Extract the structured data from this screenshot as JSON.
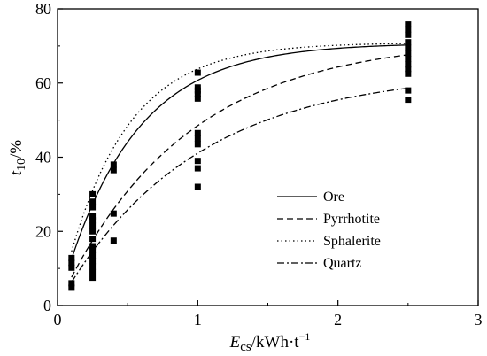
{
  "chart_data": {
    "type": "scatter",
    "title": "",
    "xlabel": {
      "main": "E",
      "sub": "cs",
      "unit": "/kWh·t",
      "sup": "−1"
    },
    "ylabel": {
      "main": "t",
      "sub": "10",
      "unit": "/%"
    },
    "xlim": [
      0,
      3
    ],
    "ylim": [
      0,
      80
    ],
    "xticks": [
      "0",
      "1",
      "2",
      "3"
    ],
    "yticks": [
      "0",
      "20",
      "40",
      "60",
      "80"
    ],
    "grid": false,
    "legend_position": "center-right",
    "points": [
      {
        "x": 0.1,
        "y": 4.8
      },
      {
        "x": 0.1,
        "y": 6.0
      },
      {
        "x": 0.1,
        "y": 10.2
      },
      {
        "x": 0.1,
        "y": 11.5
      },
      {
        "x": 0.1,
        "y": 12.8
      },
      {
        "x": 0.25,
        "y": 7.5
      },
      {
        "x": 0.25,
        "y": 9.0
      },
      {
        "x": 0.25,
        "y": 10.5
      },
      {
        "x": 0.25,
        "y": 12.0
      },
      {
        "x": 0.25,
        "y": 13.5
      },
      {
        "x": 0.25,
        "y": 15.0
      },
      {
        "x": 0.25,
        "y": 16.0
      },
      {
        "x": 0.25,
        "y": 18.0
      },
      {
        "x": 0.25,
        "y": 20.0
      },
      {
        "x": 0.25,
        "y": 21.5
      },
      {
        "x": 0.25,
        "y": 23.0
      },
      {
        "x": 0.25,
        "y": 24.0
      },
      {
        "x": 0.25,
        "y": 26.5
      },
      {
        "x": 0.25,
        "y": 28.0
      },
      {
        "x": 0.25,
        "y": 30.0
      },
      {
        "x": 0.4,
        "y": 17.5
      },
      {
        "x": 0.4,
        "y": 24.8
      },
      {
        "x": 0.4,
        "y": 36.5
      },
      {
        "x": 0.4,
        "y": 38.0
      },
      {
        "x": 1.0,
        "y": 32.0
      },
      {
        "x": 1.0,
        "y": 37.0
      },
      {
        "x": 1.0,
        "y": 39.0
      },
      {
        "x": 1.0,
        "y": 43.5
      },
      {
        "x": 1.0,
        "y": 45.0
      },
      {
        "x": 1.0,
        "y": 46.5
      },
      {
        "x": 1.0,
        "y": 55.8
      },
      {
        "x": 1.0,
        "y": 57.0
      },
      {
        "x": 1.0,
        "y": 58.0
      },
      {
        "x": 1.0,
        "y": 58.8
      },
      {
        "x": 1.0,
        "y": 62.8
      },
      {
        "x": 2.5,
        "y": 55.5
      },
      {
        "x": 2.5,
        "y": 58.0
      },
      {
        "x": 2.5,
        "y": 62.5
      },
      {
        "x": 2.5,
        "y": 63.8
      },
      {
        "x": 2.5,
        "y": 65.0
      },
      {
        "x": 2.5,
        "y": 66.5
      },
      {
        "x": 2.5,
        "y": 68.0
      },
      {
        "x": 2.5,
        "y": 69.5
      },
      {
        "x": 2.5,
        "y": 71.0
      },
      {
        "x": 2.5,
        "y": 73.0
      },
      {
        "x": 2.5,
        "y": 74.5
      },
      {
        "x": 2.5,
        "y": 75.8
      }
    ],
    "series": [
      {
        "name": "Ore",
        "dash": "solid",
        "model": "y = A(1 - exp(-b x))",
        "params": {
          "A": 70.8,
          "b": 1.95
        }
      },
      {
        "name": "Pyrrhotite",
        "dash": "dashed",
        "model": "y = A(1 - exp(-b x))",
        "params": {
          "A": 72.0,
          "b": 1.12
        }
      },
      {
        "name": "Sphalerite",
        "dash": "dotted",
        "model": "y = A(1 - exp(-b x))",
        "params": {
          "A": 70.9,
          "b": 2.3
        }
      },
      {
        "name": "Quartz",
        "dash": "dashdot",
        "model": "y = A(1 - exp(-b x))",
        "params": {
          "A": 63.2,
          "b": 1.05
        }
      }
    ]
  }
}
